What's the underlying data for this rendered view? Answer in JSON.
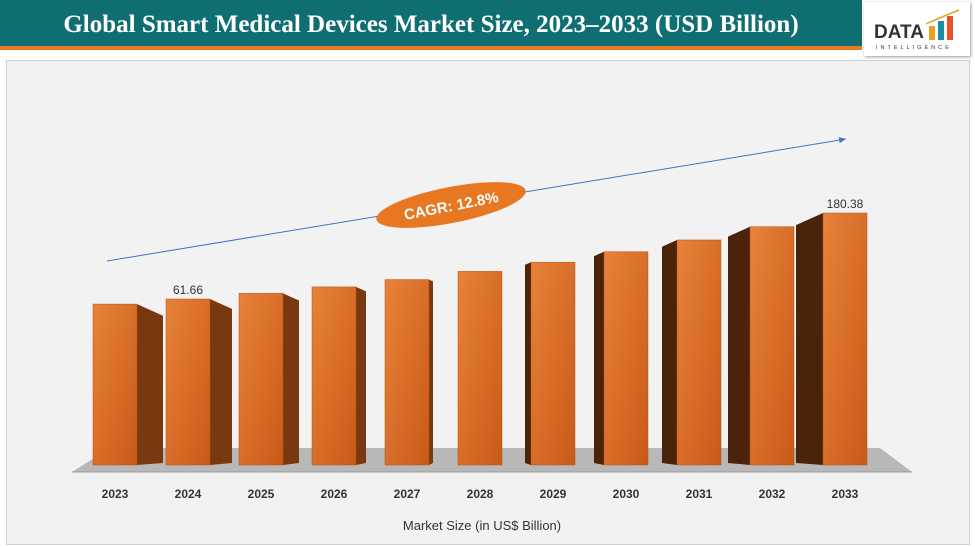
{
  "header": {
    "title": "Global Smart Medical Devices Market Size, 2023–2033 (USD Billion)",
    "logo_text": "DATA",
    "logo_subtext": "INTELLIGENCE"
  },
  "colors": {
    "title_bg": "#0f6e72",
    "accent": "#e87722",
    "bar_front": "#d2641c",
    "bar_side_dark": "#4a230a",
    "arrow": "#4472c4"
  },
  "chart_data": {
    "type": "bar",
    "style": "3d-perspective",
    "categories": [
      "2023",
      "2024",
      "2025",
      "2026",
      "2027",
      "2028",
      "2029",
      "2030",
      "2031",
      "2032",
      "2033"
    ],
    "values": [
      54.7,
      61.66,
      69.5,
      78.4,
      88.5,
      99.8,
      112.5,
      127.0,
      143.2,
      161.5,
      180.38
    ],
    "data_labels": {
      "2024": "61.66",
      "2033": "180.38"
    },
    "xlabel": "Market Size (in US$ Billion)",
    "annotation": "CAGR: 12.8%",
    "grid": false,
    "legend": "none"
  }
}
